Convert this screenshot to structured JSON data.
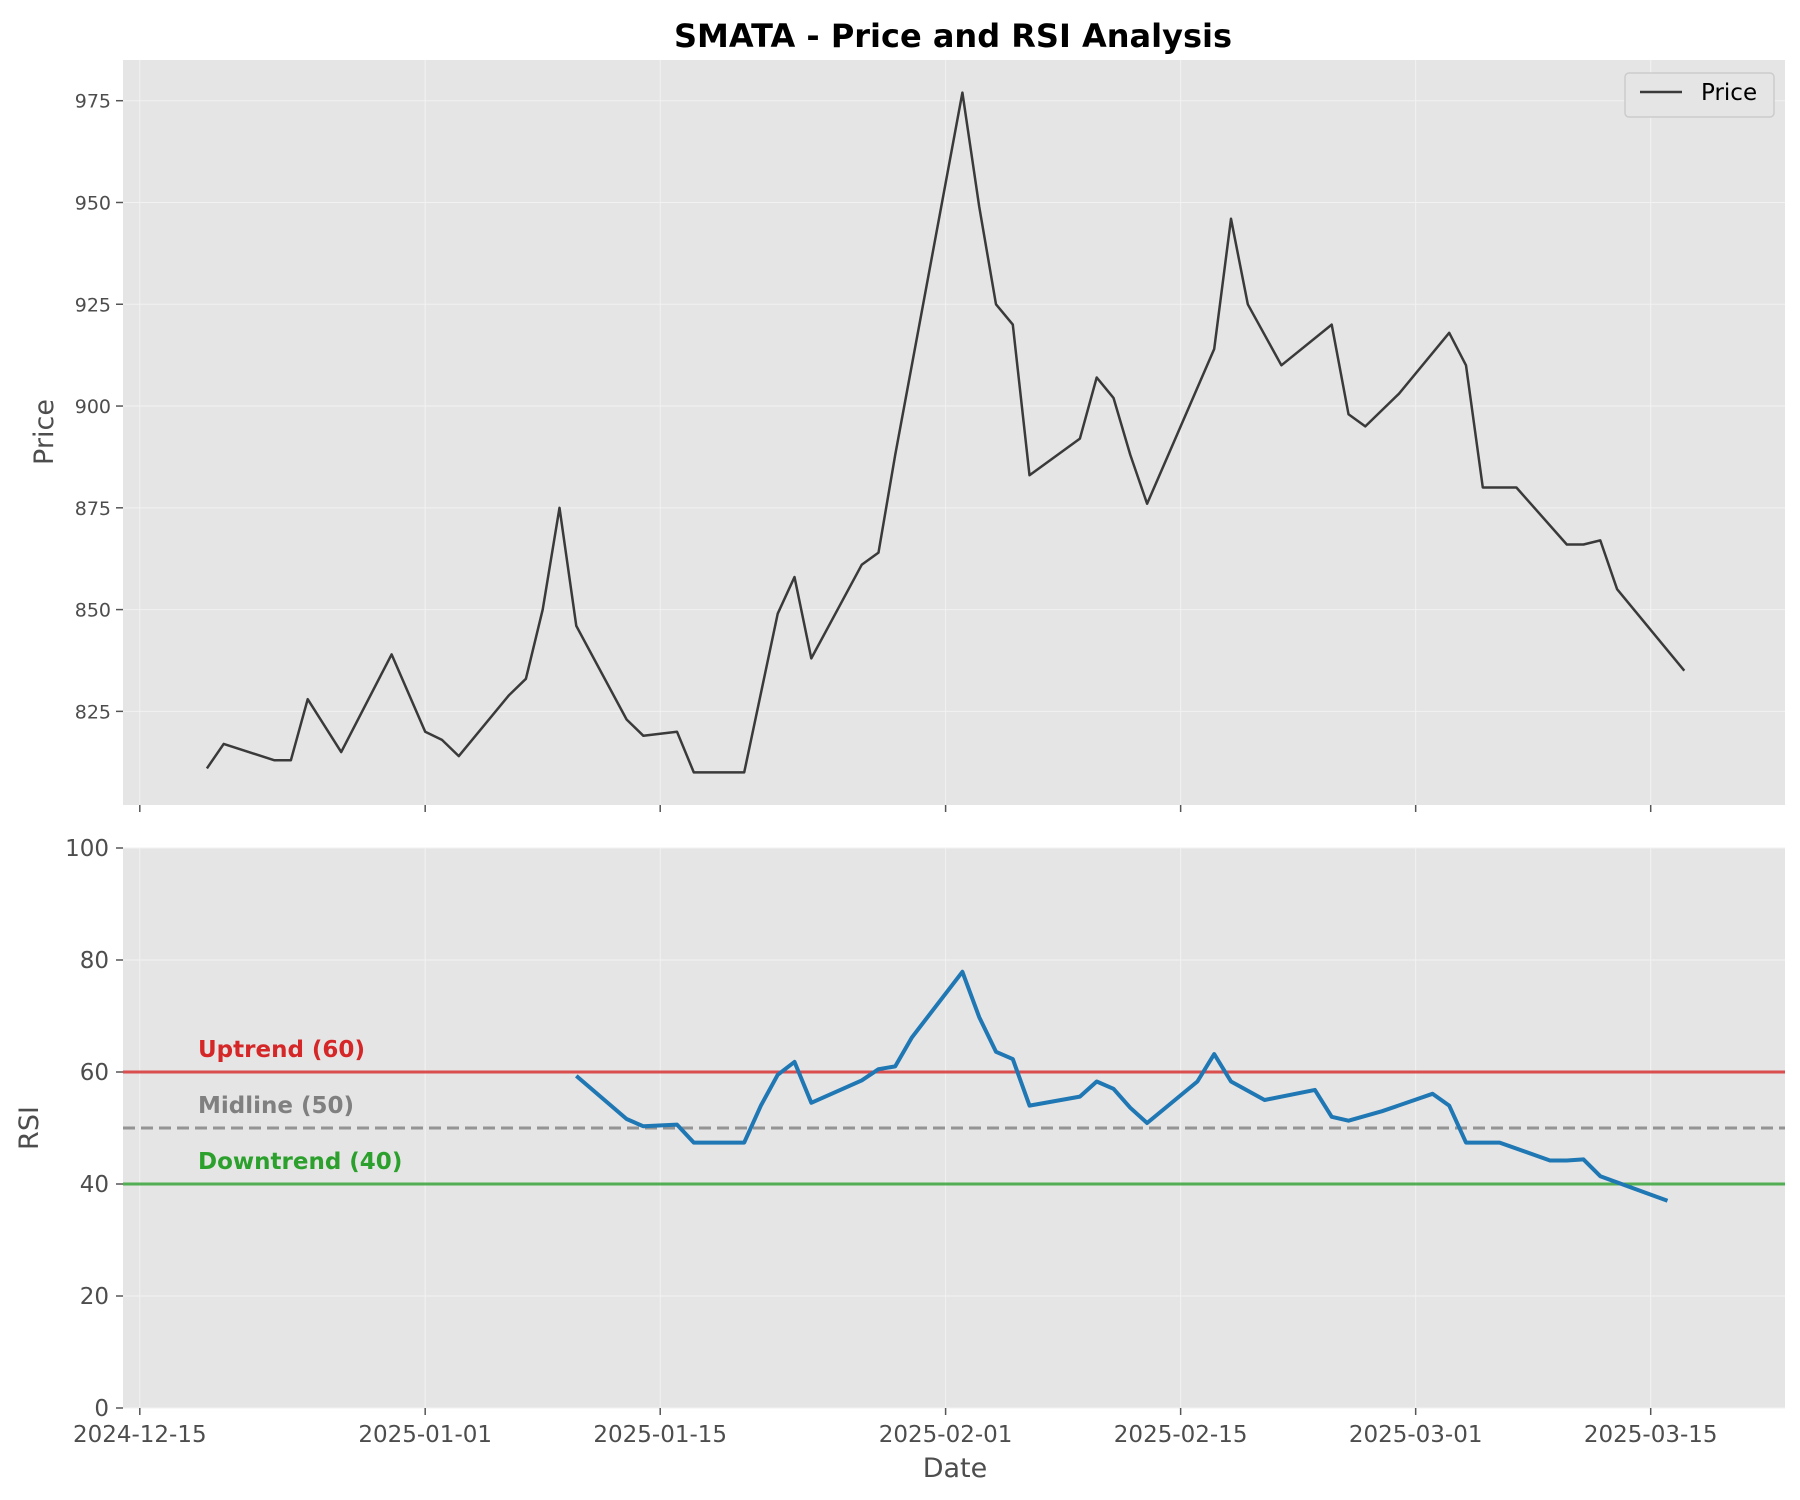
{
  "chart_data": [
    {
      "type": "line",
      "title": "SMATA - Price and RSI Analysis",
      "xlabel": "",
      "ylabel": "Price",
      "ylim": [
        802,
        985
      ],
      "yticks": [
        825,
        850,
        875,
        900,
        925,
        950,
        975
      ],
      "grid": true,
      "legend": {
        "placement": "top-right",
        "entries": [
          "Price"
        ]
      },
      "series": [
        {
          "name": "Price",
          "color": "#3a3a3a",
          "points": [
            [
              "2024-12-19",
              811
            ],
            [
              "2024-12-20",
              817
            ],
            [
              "2024-12-23",
              813
            ],
            [
              "2024-12-24",
              813
            ],
            [
              "2024-12-25",
              828
            ],
            [
              "2024-12-27",
              815
            ],
            [
              "2024-12-30",
              839
            ],
            [
              "2025-01-01",
              820
            ],
            [
              "2025-01-02",
              818
            ],
            [
              "2025-01-03",
              814
            ],
            [
              "2025-01-06",
              829
            ],
            [
              "2025-01-07",
              833
            ],
            [
              "2025-01-08",
              850
            ],
            [
              "2025-01-09",
              875
            ],
            [
              "2025-01-10",
              846
            ],
            [
              "2025-01-13",
              823
            ],
            [
              "2025-01-14",
              819
            ],
            [
              "2025-01-16",
              820
            ],
            [
              "2025-01-17",
              810
            ],
            [
              "2025-01-20",
              810
            ],
            [
              "2025-01-22",
              849
            ],
            [
              "2025-01-23",
              858
            ],
            [
              "2025-01-24",
              838
            ],
            [
              "2025-01-27",
              861
            ],
            [
              "2025-01-28",
              864
            ],
            [
              "2025-01-29",
              888
            ],
            [
              "2025-02-02",
              977
            ],
            [
              "2025-02-03",
              949
            ],
            [
              "2025-02-04",
              925
            ],
            [
              "2025-02-05",
              920
            ],
            [
              "2025-02-06",
              883
            ],
            [
              "2025-02-09",
              892
            ],
            [
              "2025-02-10",
              907
            ],
            [
              "2025-02-11",
              902
            ],
            [
              "2025-02-12",
              888
            ],
            [
              "2025-02-13",
              876
            ],
            [
              "2025-02-17",
              914
            ],
            [
              "2025-02-18",
              946
            ],
            [
              "2025-02-19",
              925
            ],
            [
              "2025-02-21",
              910
            ],
            [
              "2025-02-24",
              920
            ],
            [
              "2025-02-25",
              898
            ],
            [
              "2025-02-26",
              895
            ],
            [
              "2025-02-28",
              903
            ],
            [
              "2025-03-03",
              918
            ],
            [
              "2025-03-04",
              910
            ],
            [
              "2025-03-05",
              880
            ],
            [
              "2025-03-07",
              880
            ],
            [
              "2025-03-10",
              866
            ],
            [
              "2025-03-11",
              866
            ],
            [
              "2025-03-12",
              867
            ],
            [
              "2025-03-13",
              855
            ],
            [
              "2025-03-17",
              835
            ]
          ]
        }
      ]
    },
    {
      "type": "line",
      "title": "",
      "xlabel": "Date",
      "ylabel": "RSI",
      "ylim": [
        0,
        100
      ],
      "yticks": [
        0,
        20,
        40,
        60,
        80,
        100
      ],
      "xticks": [
        "2024-12-15",
        "2025-01-01",
        "2025-01-15",
        "2025-02-01",
        "2025-02-15",
        "2025-03-01",
        "2025-03-15"
      ],
      "xlim": [
        "2024-12-14",
        "2025-03-23"
      ],
      "grid": true,
      "series": [
        {
          "name": "RSI",
          "color": "#1f77b4",
          "points": [
            [
              "2025-01-10",
              59.3
            ],
            [
              "2025-01-13",
              51.6
            ],
            [
              "2025-01-14",
              50.3
            ],
            [
              "2025-01-16",
              50.6
            ],
            [
              "2025-01-17",
              47.4
            ],
            [
              "2025-01-20",
              47.4
            ],
            [
              "2025-01-21",
              54.0
            ],
            [
              "2025-01-22",
              59.5
            ],
            [
              "2025-01-23",
              61.8
            ],
            [
              "2025-01-24",
              54.5
            ],
            [
              "2025-01-27",
              58.5
            ],
            [
              "2025-01-28",
              60.5
            ],
            [
              "2025-01-29",
              61.0
            ],
            [
              "2025-01-30",
              66.2
            ],
            [
              "2025-02-02",
              77.9
            ],
            [
              "2025-02-03",
              69.8
            ],
            [
              "2025-02-04",
              63.6
            ],
            [
              "2025-02-05",
              62.3
            ],
            [
              "2025-02-06",
              54.0
            ],
            [
              "2025-02-09",
              55.6
            ],
            [
              "2025-02-10",
              58.3
            ],
            [
              "2025-02-11",
              57.0
            ],
            [
              "2025-02-12",
              53.6
            ],
            [
              "2025-02-13",
              50.9
            ],
            [
              "2025-02-16",
              58.3
            ],
            [
              "2025-02-17",
              63.2
            ],
            [
              "2025-02-18",
              58.3
            ],
            [
              "2025-02-20",
              55.0
            ],
            [
              "2025-02-23",
              56.8
            ],
            [
              "2025-02-24",
              52.0
            ],
            [
              "2025-02-25",
              51.3
            ],
            [
              "2025-02-27",
              53.0
            ],
            [
              "2025-03-02",
              56.1
            ],
            [
              "2025-03-03",
              54.0
            ],
            [
              "2025-03-04",
              47.4
            ],
            [
              "2025-03-06",
              47.4
            ],
            [
              "2025-03-09",
              44.2
            ],
            [
              "2025-03-10",
              44.2
            ],
            [
              "2025-03-11",
              44.4
            ],
            [
              "2025-03-12",
              41.4
            ],
            [
              "2025-03-16",
              37.0
            ]
          ]
        }
      ],
      "reference_lines": [
        {
          "label": "Uptrend (60)",
          "value": 60,
          "color": "#d62728",
          "dashed": false
        },
        {
          "label": "Midline (50)",
          "value": 50,
          "color": "#808080",
          "dashed": true
        },
        {
          "label": "Downtrend (40)",
          "value": 40,
          "color": "#2ca02c",
          "dashed": false
        }
      ]
    }
  ]
}
